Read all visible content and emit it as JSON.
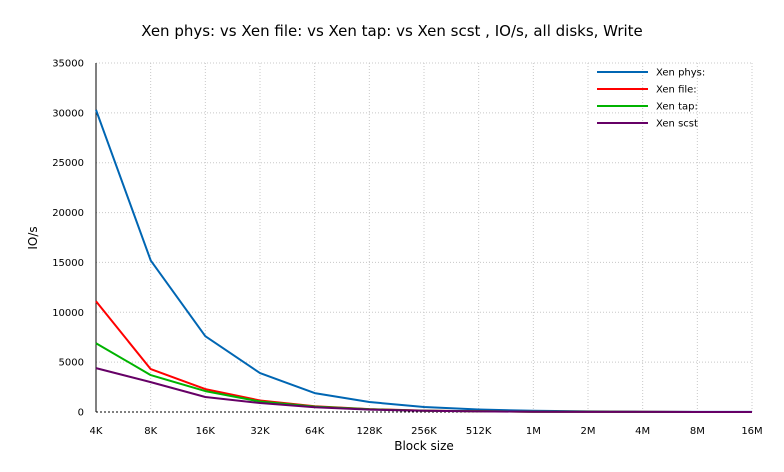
{
  "chart_data": {
    "type": "line",
    "title": "Xen phys: vs Xen file: vs Xen tap: vs Xen scst , IO/s, all disks, Write",
    "xlabel": "Block size",
    "ylabel": "IO/s",
    "categories": [
      "4K",
      "8K",
      "16K",
      "32K",
      "64K",
      "128K",
      "256K",
      "512K",
      "1M",
      "2M",
      "4M",
      "8M",
      "16M"
    ],
    "ylim": [
      0,
      35000
    ],
    "yticks": [
      0,
      5000,
      10000,
      15000,
      20000,
      25000,
      30000,
      35000
    ],
    "grid": true,
    "legend_position": "top-right",
    "series": [
      {
        "name": "Xen phys:",
        "color": "#0066b3",
        "values": [
          30300,
          15200,
          7600,
          3900,
          1900,
          1000,
          500,
          250,
          120,
          60,
          30,
          15,
          8
        ]
      },
      {
        "name": "Xen file:",
        "color": "#ff0000",
        "values": [
          11100,
          4300,
          2300,
          1150,
          580,
          290,
          140,
          70,
          35,
          18,
          9,
          5,
          3
        ]
      },
      {
        "name": "Xen tap:",
        "color": "#00b300",
        "values": [
          6900,
          3700,
          2100,
          1050,
          540,
          270,
          135,
          68,
          34,
          17,
          9,
          4,
          2
        ]
      },
      {
        "name": "Xen scst",
        "color": "#660066",
        "values": [
          4400,
          3000,
          1500,
          900,
          470,
          240,
          120,
          60,
          30,
          15,
          8,
          4,
          2
        ]
      }
    ]
  }
}
